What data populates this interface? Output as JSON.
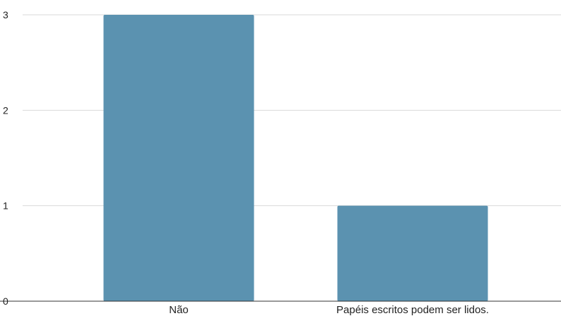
{
  "chart_data": {
    "type": "bar",
    "categories": [
      "Não",
      "Papéis escritos podem ser lidos."
    ],
    "values": [
      3,
      1
    ],
    "title": "",
    "xlabel": "",
    "ylabel": "",
    "ylim": [
      0,
      3
    ],
    "yticks": [
      0,
      1,
      2,
      3
    ],
    "grid": true,
    "bar_color": "#5b92b0"
  }
}
